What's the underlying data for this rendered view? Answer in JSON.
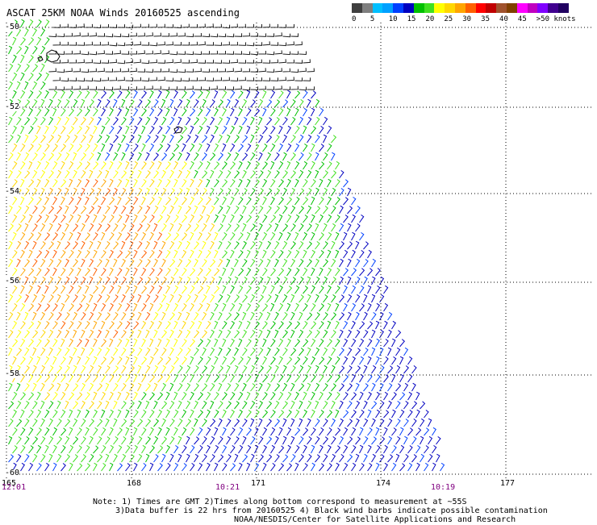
{
  "title": "ASCAT 25KM NOAA Winds 20160525 ascending",
  "scale": {
    "colors": [
      "#3f3f3f",
      "#7f7f7f",
      "#00bfff",
      "#00a0ff",
      "#0040ff",
      "#0000c0",
      "#00c000",
      "#40e020",
      "#ffff00",
      "#ffd700",
      "#ffa500",
      "#ff6000",
      "#ff0000",
      "#c00000",
      "#a0522d",
      "#804000",
      "#ff00ff",
      "#c000c0",
      "#8000ff",
      "#40008f",
      "#200060"
    ],
    "labels": [
      "0",
      "5",
      "10",
      "15",
      "20",
      "25",
      "30",
      "35",
      "40",
      "45",
      ">50 knots"
    ],
    "label_values": [
      0,
      5,
      10,
      15,
      20,
      25,
      30,
      35,
      40,
      45,
      50
    ]
  },
  "lat_labels": [
    "-50",
    "-52",
    "-54",
    "-56",
    "-58",
    "-60"
  ],
  "lat_values": [
    -50,
    -52,
    -54,
    -56,
    -58,
    -60
  ],
  "lon_labels": [
    "165",
    "168",
    "171",
    "174",
    "177"
  ],
  "lon_values": [
    165,
    168,
    171,
    174,
    177
  ],
  "times": [
    "12:01",
    "10:21",
    "10:19"
  ],
  "notes": [
    "Note: 1) Times are GMT 2)Times along bottom correspond to measurement at ~55S",
    "3)Data buffer is 22 hrs from 20160525 4) Black wind barbs indicate possible contamination",
    "NOAA/NESDIS/Center for Satellite Applications and Research"
  ]
}
